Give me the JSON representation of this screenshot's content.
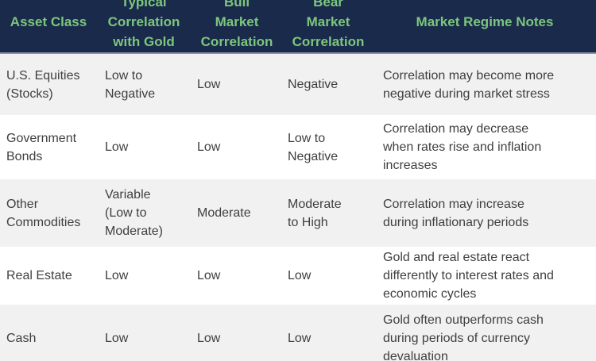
{
  "colors": {
    "header_bg": "#1A2A4B",
    "header_text": "#7CC67E",
    "body_text": "#3F3F3F",
    "row_stripe": "#F2F1F1",
    "row_plain": "#FFFFFF",
    "header_divider": "#8B94A8"
  },
  "table": {
    "columns": [
      {
        "label": "Asset Class"
      },
      {
        "label": "Typical\nCorrelation\nwith Gold"
      },
      {
        "label": "Bull\nMarket\nCorrelation"
      },
      {
        "label": "Bear\nMarket\nCorrelation"
      },
      {
        "label": "Market Regime Notes"
      }
    ],
    "rows": [
      [
        "U.S. Equities\n(Stocks)",
        "Low to\nNegative",
        "Low",
        "Negative",
        "Correlation may become more\nnegative during market stress"
      ],
      [
        "Government\nBonds",
        "Low",
        "Low",
        "Low to\nNegative",
        "Correlation may decrease\nwhen rates rise and inflation\nincreases"
      ],
      [
        "Other\nCommodities",
        "Variable\n(Low to\nModerate)",
        "Moderate",
        "Moderate\nto High",
        "Correlation may increase\nduring inflationary periods"
      ],
      [
        "Real Estate",
        "Low",
        "Low",
        "Low",
        "Gold and real estate react\ndifferently to interest rates and\neconomic cycles"
      ],
      [
        "Cash",
        "Low",
        "Low",
        "Low",
        "Gold often outperforms cash\nduring periods of currency\ndevaluation"
      ]
    ]
  }
}
